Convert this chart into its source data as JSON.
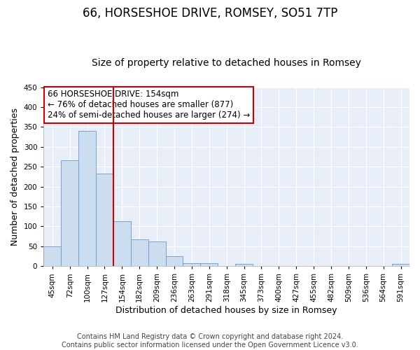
{
  "title": "66, HORSESHOE DRIVE, ROMSEY, SO51 7TP",
  "subtitle": "Size of property relative to detached houses in Romsey",
  "xlabel": "Distribution of detached houses by size in Romsey",
  "ylabel": "Number of detached properties",
  "bar_labels": [
    "45sqm",
    "72sqm",
    "100sqm",
    "127sqm",
    "154sqm",
    "182sqm",
    "209sqm",
    "236sqm",
    "263sqm",
    "291sqm",
    "318sqm",
    "345sqm",
    "373sqm",
    "400sqm",
    "427sqm",
    "455sqm",
    "482sqm",
    "509sqm",
    "536sqm",
    "564sqm",
    "591sqm"
  ],
  "bar_heights": [
    50,
    267,
    340,
    232,
    113,
    68,
    62,
    25,
    7,
    7,
    0,
    5,
    0,
    0,
    0,
    0,
    0,
    0,
    0,
    0,
    5
  ],
  "bar_color": "#ccddf0",
  "bar_edge_color": "#6699cc",
  "vline_color": "#cc0000",
  "annotation_title": "66 HORSESHOE DRIVE: 154sqm",
  "annotation_line1": "← 76% of detached houses are smaller (877)",
  "annotation_line2": "24% of semi-detached houses are larger (274) →",
  "annotation_box_color": "#ffffff",
  "annotation_box_edge_color": "#cc0000",
  "ylim": [
    0,
    450
  ],
  "yticks": [
    0,
    50,
    100,
    150,
    200,
    250,
    300,
    350,
    400,
    450
  ],
  "footer_line1": "Contains HM Land Registry data © Crown copyright and database right 2024.",
  "footer_line2": "Contains public sector information licensed under the Open Government Licence v3.0.",
  "bg_color": "#ffffff",
  "plot_bg_color": "#e8eef8",
  "grid_color": "#ffffff",
  "title_fontsize": 12,
  "subtitle_fontsize": 10,
  "axis_label_fontsize": 9,
  "tick_fontsize": 7.5,
  "annotation_fontsize": 8.5,
  "footer_fontsize": 7
}
